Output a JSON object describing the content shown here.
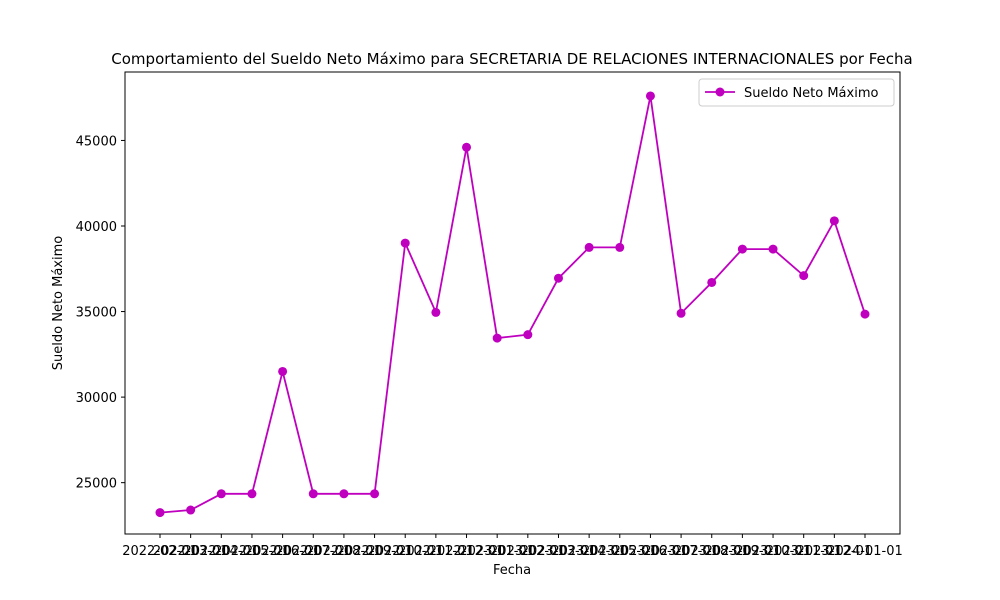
{
  "chart_data": {
    "type": "line",
    "title": "Comportamiento del Sueldo Neto Máximo para SECRETARIA DE RELACIONES INTERNACIONALES por Fecha",
    "xlabel": "Fecha",
    "ylabel": "Sueldo Neto Máximo",
    "x": [
      "2022-02-01",
      "2022-03-01",
      "2022-04-01",
      "2022-05-01",
      "2022-06-01",
      "2022-07-01",
      "2022-08-01",
      "2022-09-01",
      "2022-10-01",
      "2022-11-01",
      "2022-12-01",
      "2023-01-01",
      "2023-02-01",
      "2023-03-01",
      "2023-04-01",
      "2023-05-01",
      "2023-06-01",
      "2023-07-01",
      "2023-08-01",
      "2023-09-01",
      "2023-10-01",
      "2023-11-01",
      "2023-12-01",
      "2024-01-01"
    ],
    "series": [
      {
        "name": "Sueldo Neto Máximo",
        "color": "#bf00bf",
        "values": [
          23250,
          23400,
          24350,
          24350,
          31500,
          24350,
          24350,
          24350,
          39000,
          34950,
          44600,
          33450,
          33650,
          36950,
          38750,
          38750,
          47600,
          34900,
          36700,
          38650,
          38650,
          37100,
          40300,
          34850
        ]
      }
    ],
    "ylim": [
      22000,
      49000
    ],
    "yticks": [
      25000,
      30000,
      35000,
      40000,
      45000
    ],
    "grid": false,
    "legend": "top-right"
  }
}
